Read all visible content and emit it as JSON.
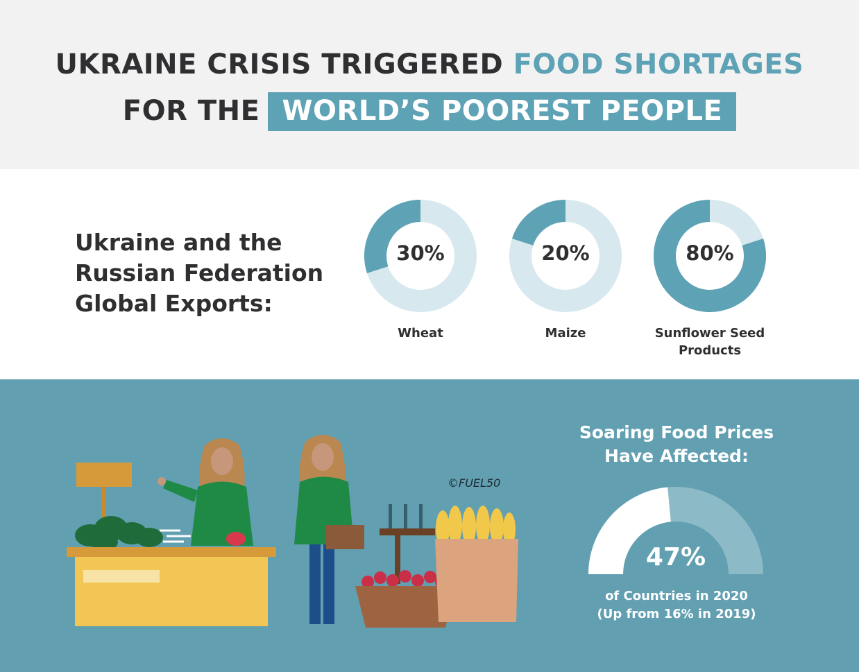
{
  "header": {
    "line1_dark": "UKRAINE CRISIS TRIGGERED",
    "line1_accent": "FOOD SHORTAGES",
    "line2_dark": "FOR THE",
    "line2_boxed": "WORLD’S POOREST PEOPLE"
  },
  "exports": {
    "label": "Ukraine and the Russian Federation Global Exports:"
  },
  "chart_data": [
    {
      "type": "pie",
      "title": "",
      "categories": [
        "Wheat",
        "Maize",
        "Sunflower Seed Products"
      ],
      "values": [
        30,
        20,
        80
      ],
      "labels": [
        "30%",
        "20%",
        "80%"
      ],
      "unit": "%"
    },
    {
      "type": "gauge",
      "title": "Soaring Food Prices Have Affected:",
      "value": 47,
      "label": "47%",
      "note_line1": "of Countries in 2020",
      "note_line2": "(Up from 16% in 2019)"
    }
  ],
  "illustration": {
    "watermark": "©FUEL50"
  },
  "colors": {
    "accent": "#5ea2b5",
    "accent_light": "#d7e8ef",
    "panel": "#619fb1",
    "text_dark": "#2f2f31"
  }
}
